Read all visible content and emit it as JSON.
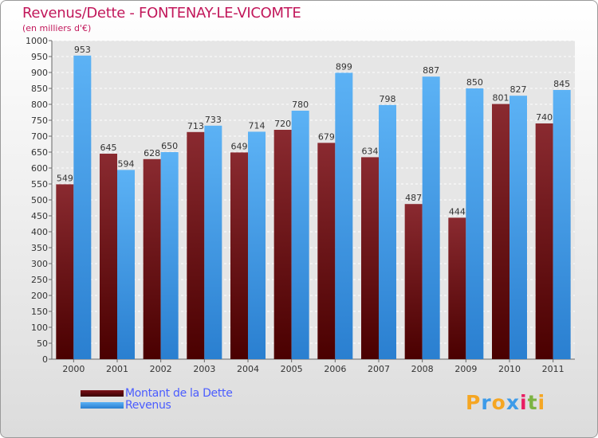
{
  "chart_data": {
    "type": "bar",
    "title": "Revenus/Dette - FONTENAY-LE-VICOMTE",
    "ylabel": "(en milliers d'€)",
    "ylim": [
      0,
      1000
    ],
    "yticks": [
      "0",
      "50",
      "100",
      "150",
      "200",
      "250",
      "300",
      "350",
      "400",
      "450",
      "500",
      "550",
      "600",
      "650",
      "700",
      "750",
      "800",
      "850",
      "900",
      "950",
      "1000"
    ],
    "categories": [
      "2000",
      "2001",
      "2002",
      "2003",
      "2004",
      "2005",
      "2006",
      "2007",
      "2008",
      "2009",
      "2010",
      "2011"
    ],
    "series": [
      {
        "name": "Montant de la Dette",
        "color": "#7a1016",
        "values": [
          549,
          645,
          628,
          713,
          649,
          720,
          679,
          634,
          487,
          444,
          801,
          740
        ]
      },
      {
        "name": "Revenus",
        "color": "#3d9be9",
        "values": [
          953,
          594,
          650,
          733,
          714,
          780,
          899,
          798,
          887,
          850,
          827,
          845
        ]
      }
    ],
    "value_labels": [
      [
        "549",
        "645",
        "628",
        "713",
        "649",
        "720",
        "679",
        "634",
        "487",
        "444",
        "801",
        "740"
      ],
      [
        "953",
        "594",
        "650",
        "733",
        "714",
        "780",
        "899",
        "798",
        "887",
        "850",
        "827",
        "845"
      ]
    ]
  },
  "logo": {
    "text": "Proxiti",
    "letters": [
      "P",
      "r",
      "o",
      "x",
      "i",
      "t",
      "i"
    ],
    "colors": [
      "#f5a623",
      "#3d9be9",
      "#f5a623",
      "#3d9be9",
      "#e91e63",
      "#7cb342",
      "#f5a623"
    ]
  }
}
